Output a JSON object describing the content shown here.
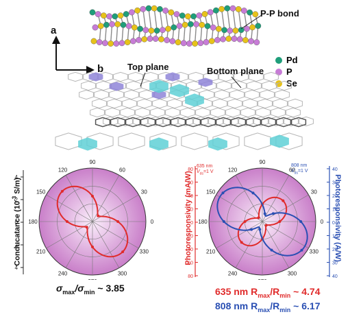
{
  "figure": {
    "crystal": {
      "bond_label": "P-P bond",
      "axis_a": "a",
      "axis_b": "b",
      "legend": [
        {
          "label": "Pd",
          "color": "#1f9e7a"
        },
        {
          "label": "P",
          "color": "#c77cd6"
        },
        {
          "label": "Se",
          "color": "#e7c21a"
        }
      ]
    },
    "lattice": {
      "top_plane": "Top plane",
      "bottom_plane": "Bottom plane",
      "colors": {
        "purple": "#8f85d8",
        "cyan": "#5fd0d6"
      }
    },
    "left_panel": {
      "ylabel": "Conducatance (10",
      "ylabel_exp": "-3",
      "ylabel_unit": " S/m)",
      "ticks": [
        "4",
        "2",
        "0",
        "2",
        "4"
      ],
      "angles": [
        "90",
        "60",
        "30",
        "0",
        "330",
        "300",
        "270",
        "240",
        "210",
        "180",
        "150",
        "120"
      ],
      "ratio_prefix": "σ",
      "ratio_sub1": "max",
      "ratio_mid": "/σ",
      "ratio_sub2": "min",
      "ratio_value": " ~ 3.85",
      "curve_color": "#e02b2b"
    },
    "right_panel": {
      "left_ylabel": "Photoresponsivity (mA/W)",
      "left_ticks": [
        "80",
        "60",
        "40",
        "20",
        "0",
        "20",
        "40",
        "60",
        "80"
      ],
      "right_ylabel": "Photoresponsivity (A/W)",
      "right_ticks": [
        "40",
        "30",
        "20",
        "10",
        "0",
        "10",
        "20",
        "30",
        "40"
      ],
      "red_tag_line1": "635 nm",
      "red_tag_line2": "V",
      "red_tag_sub": "ds",
      "red_tag_line2b": "=1 V",
      "blue_tag_line1": "808 nm",
      "blue_tag_line2": "V",
      "blue_tag_sub": "ds",
      "blue_tag_line2b": "=1 V",
      "angles": [
        "90",
        "60",
        "30",
        "0",
        "330",
        "300",
        "270",
        "240",
        "210",
        "180",
        "150",
        "120"
      ],
      "red_caption": "635 nm R",
      "red_cap_sub1": "max",
      "red_cap_mid": "/R",
      "red_cap_sub2": "min",
      "red_cap_value": " ~ 4.74",
      "blue_caption": "808 nm R",
      "blue_cap_sub1": "max",
      "blue_cap_mid": "/R",
      "blue_cap_sub2": "min",
      "blue_cap_value": " ~ 6.17",
      "red_color": "#e02b2b",
      "blue_color": "#2a4fb3"
    }
  }
}
